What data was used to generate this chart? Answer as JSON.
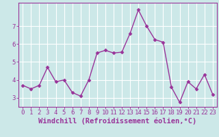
{
  "x": [
    0,
    1,
    2,
    3,
    4,
    5,
    6,
    7,
    8,
    9,
    10,
    11,
    12,
    13,
    14,
    15,
    16,
    17,
    18,
    19,
    20,
    21,
    22,
    23
  ],
  "y": [
    3.7,
    3.5,
    3.7,
    4.7,
    3.9,
    4.0,
    3.3,
    3.1,
    4.0,
    5.5,
    5.65,
    5.5,
    5.55,
    6.6,
    7.9,
    7.0,
    6.25,
    6.1,
    3.6,
    2.75,
    3.9,
    3.5,
    4.3,
    3.2
  ],
  "line_color": "#993399",
  "marker": "D",
  "marker_size": 2.5,
  "bg_color": "#cce8e8",
  "grid_color": "#ffffff",
  "xlabel": "Windchill (Refroidissement éolien,°C)",
  "ylim": [
    2.5,
    8.3
  ],
  "xlim": [
    -0.5,
    23.5
  ],
  "yticks": [
    3,
    4,
    5,
    6,
    7
  ],
  "xticks": [
    0,
    1,
    2,
    3,
    4,
    5,
    6,
    7,
    8,
    9,
    10,
    11,
    12,
    13,
    14,
    15,
    16,
    17,
    18,
    19,
    20,
    21,
    22,
    23
  ],
  "tick_color": "#993399",
  "label_color": "#993399",
  "spine_color": "#993399",
  "font_size": 6.5,
  "xlabel_font_size": 7.5,
  "linewidth": 1.0
}
